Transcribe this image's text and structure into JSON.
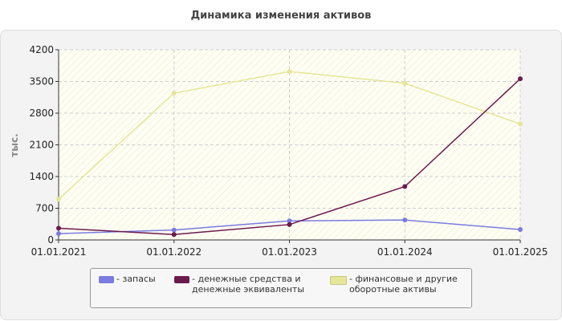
{
  "chart_data": {
    "type": "line",
    "title": "Динамика изменения активов",
    "ylabel": "тыс.",
    "xlabel": "",
    "categories": [
      "01.01.2021",
      "01.01.2022",
      "01.01.2023",
      "01.01.2024",
      "01.01.2025"
    ],
    "y_ticks": [
      "0",
      "700",
      "1400",
      "2100",
      "2800",
      "3500",
      "4200"
    ],
    "ylim": [
      0,
      4200
    ],
    "grid": true,
    "legend_position": "bottom",
    "series": [
      {
        "name": "- запасы",
        "values": [
          140,
          220,
          420,
          440,
          230
        ],
        "color": "#7b7be0"
      },
      {
        "name": "- денежные средства и денежные эквиваленты",
        "values": [
          260,
          120,
          340,
          1180,
          3560
        ],
        "color": "#6b1a4e"
      },
      {
        "name": "- финансовые и другие оборотные активы",
        "values": [
          900,
          3240,
          3720,
          3460,
          2560
        ],
        "color": "#e6e69a"
      }
    ]
  }
}
